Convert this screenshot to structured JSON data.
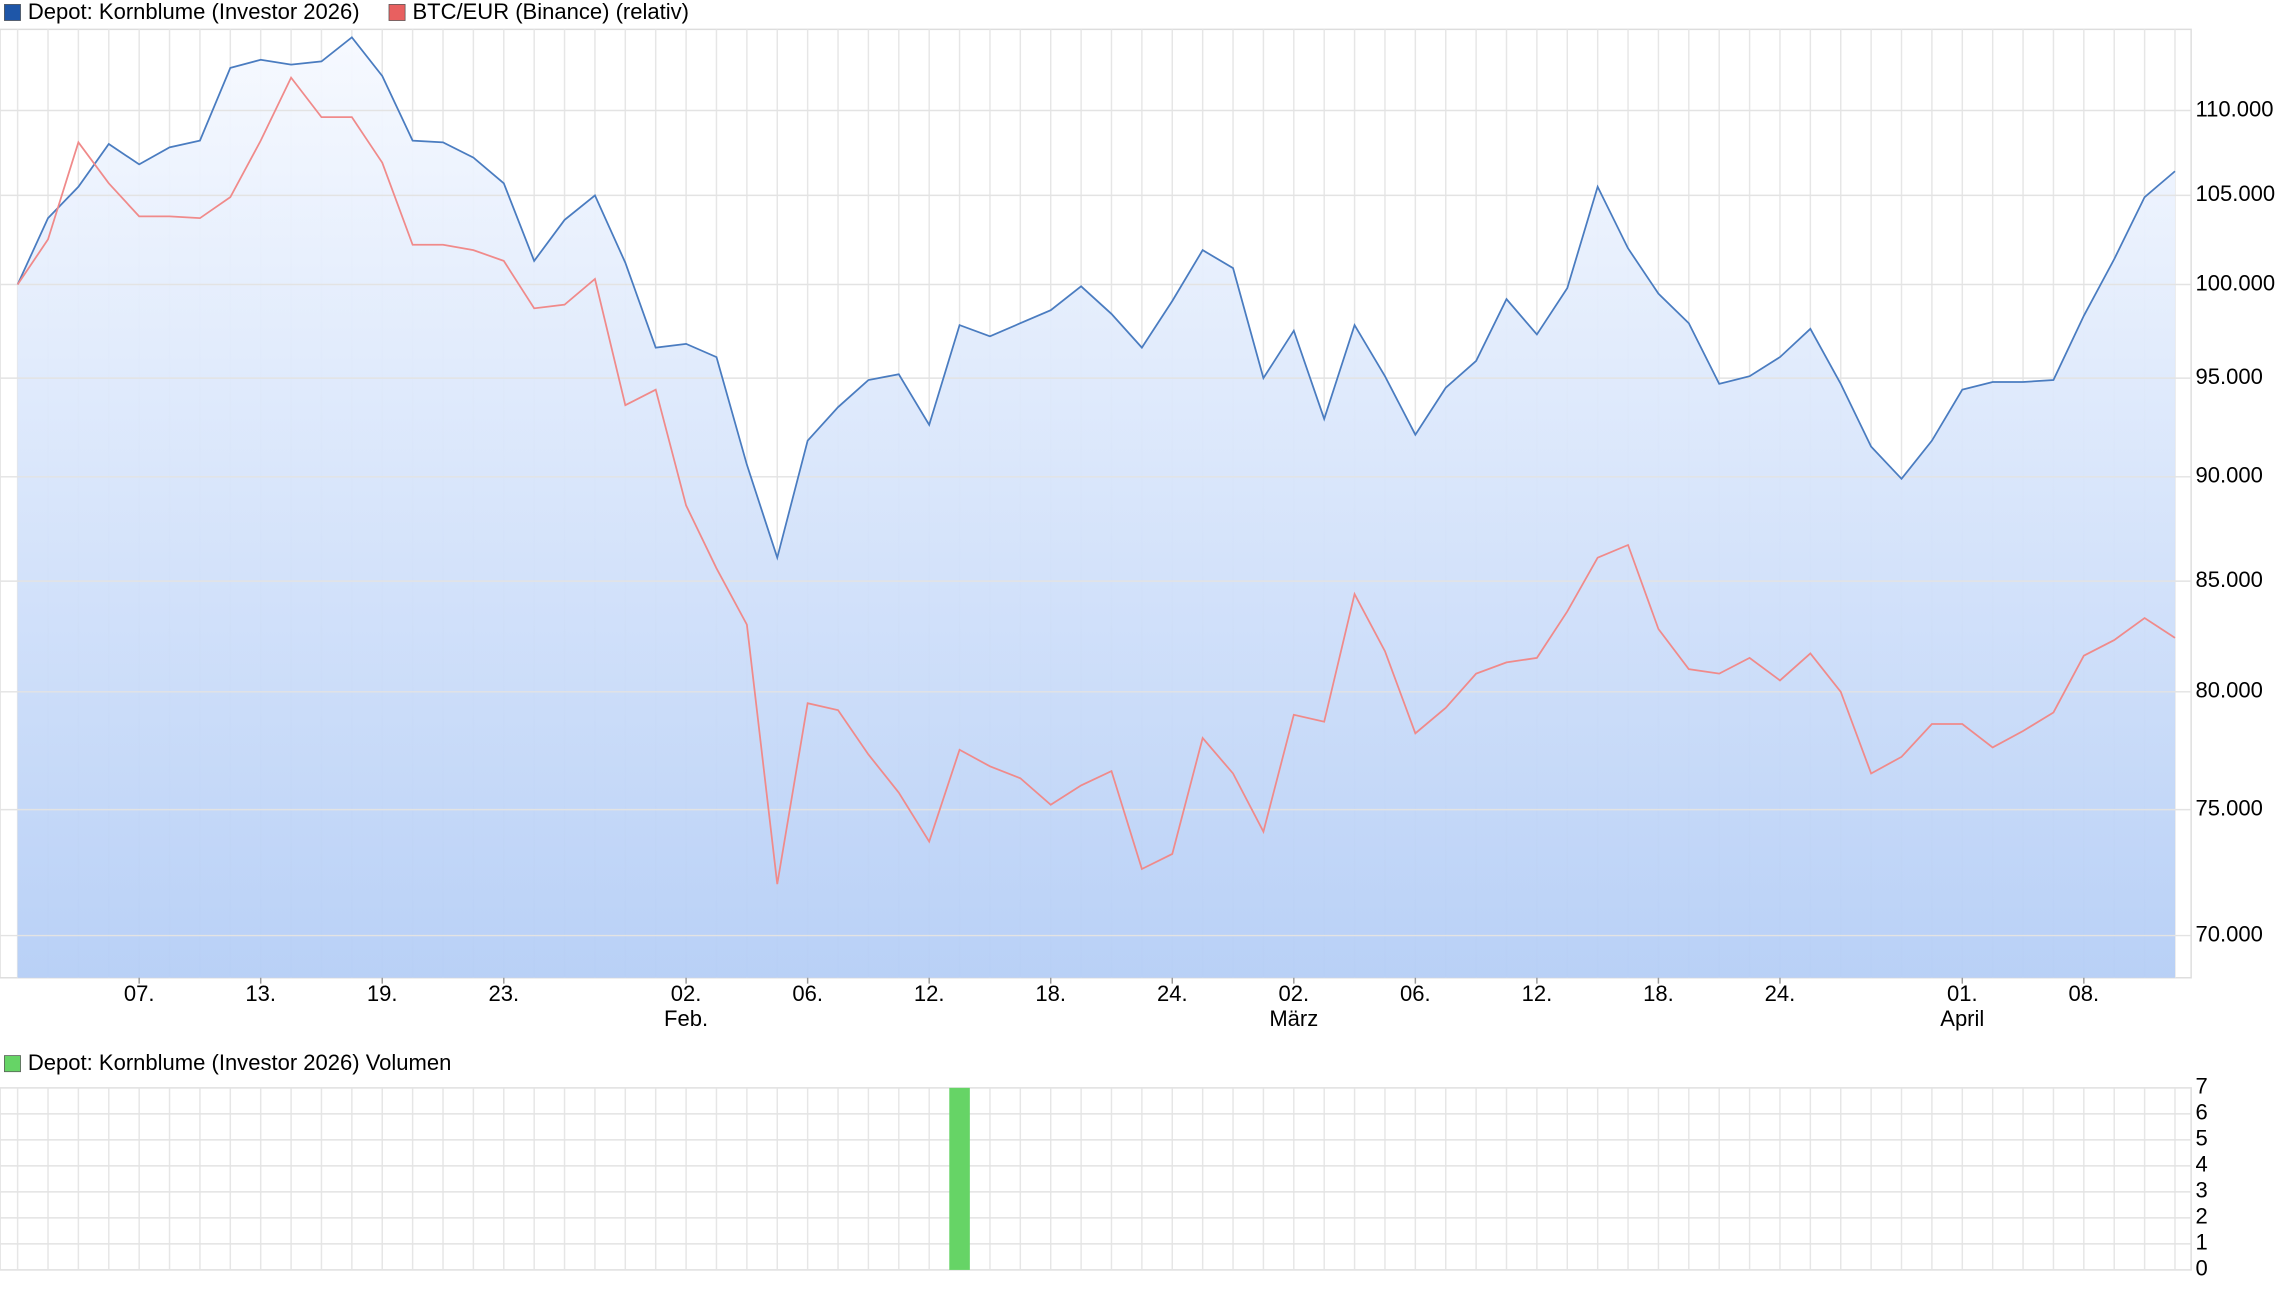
{
  "chart_data": [
    {
      "type": "line",
      "log_scale": true,
      "grid": true,
      "categories": [
        null,
        null,
        null,
        null,
        "07.",
        null,
        null,
        null,
        "13.",
        null,
        null,
        null,
        "19.",
        null,
        null,
        null,
        "23.",
        null,
        null,
        null,
        null,
        null,
        "02.",
        null,
        null,
        null,
        "06.",
        null,
        null,
        null,
        "12.",
        null,
        null,
        null,
        "18.",
        null,
        null,
        null,
        "24.",
        null,
        null,
        null,
        "02.",
        null,
        null,
        null,
        "06.",
        null,
        null,
        null,
        "12.",
        null,
        null,
        null,
        "18.",
        null,
        null,
        null,
        "24.",
        null,
        null,
        null,
        null,
        null,
        "01.",
        null,
        null,
        null,
        "08.",
        null,
        null,
        null
      ],
      "category_months": [
        null,
        null,
        null,
        null,
        null,
        null,
        null,
        null,
        null,
        null,
        null,
        null,
        null,
        null,
        null,
        null,
        null,
        null,
        null,
        null,
        null,
        null,
        "Feb.",
        null,
        null,
        null,
        null,
        null,
        null,
        null,
        null,
        null,
        null,
        null,
        null,
        null,
        null,
        null,
        null,
        null,
        null,
        null,
        "März",
        null,
        null,
        null,
        null,
        null,
        null,
        null,
        null,
        null,
        null,
        null,
        null,
        null,
        null,
        null,
        null,
        null,
        null,
        null,
        null,
        null,
        "April",
        null,
        null,
        null,
        null,
        null,
        null,
        null
      ],
      "series": [
        {
          "name": "Depot: Kornblume (Investor 2026)",
          "color": "#4a7cc0",
          "legend_color": "#1e56a8",
          "fill": true,
          "values": [
            100,
            103.7,
            105.5,
            108,
            106.8,
            107.8,
            108.2,
            112.6,
            113.1,
            112.8,
            113,
            114.5,
            112.1,
            108.2,
            108.1,
            107.2,
            105.7,
            101.3,
            103.6,
            105,
            101.2,
            96.6,
            96.8,
            96.1,
            90.6,
            86.1,
            91.8,
            93.5,
            94.9,
            95.2,
            92.6,
            97.8,
            97.2,
            97.9,
            98.6,
            99.9,
            98.4,
            96.6,
            99.1,
            101.9,
            100.9,
            95,
            97.5,
            92.9,
            97.8,
            95.1,
            92.1,
            94.5,
            95.9,
            99.2,
            97.3,
            99.8,
            105.5,
            102,
            99.5,
            97.9,
            94.7,
            95.1,
            96.1,
            97.6,
            94.7,
            91.5,
            89.9,
            91.8,
            94.4,
            94.8,
            94.8,
            94.9,
            98.3,
            101.4,
            104.9,
            106.4
          ]
        },
        {
          "name": "BTC/EUR (Binance) (relativ)",
          "color": "#f08a8a",
          "legend_color": "#e86060",
          "fill": false,
          "values": [
            100,
            102.5,
            108.1,
            105.7,
            103.8,
            103.8,
            103.7,
            104.9,
            108.2,
            112,
            109.6,
            109.6,
            106.9,
            102.2,
            102.2,
            101.9,
            101.3,
            98.7,
            98.9,
            100.3,
            93.6,
            94.4,
            88.6,
            85.6,
            83,
            72,
            79.5,
            79.2,
            77.3,
            75.7,
            73.7,
            77.5,
            76.8,
            76.3,
            75.2,
            76,
            76.6,
            72.6,
            73.2,
            78,
            76.5,
            74.1,
            79,
            78.7,
            84.4,
            81.8,
            78.2,
            79.3,
            80.8,
            81.3,
            81.5,
            83.6,
            86.1,
            86.7,
            82.8,
            81,
            80.8,
            81.5,
            80.5,
            81.7,
            80,
            76.5,
            77.2,
            78.6,
            78.6,
            77.6,
            78.3,
            79.1,
            81.6,
            82.3,
            83.3,
            82.4
          ]
        }
      ],
      "ylim": [
        68.4,
        115
      ],
      "yticks": [
        {
          "value": 70,
          "label": "70.000"
        },
        {
          "value": 75,
          "label": "75.000"
        },
        {
          "value": 80,
          "label": "80.000"
        },
        {
          "value": 85,
          "label": "85.000"
        },
        {
          "value": 90,
          "label": "90.000"
        },
        {
          "value": 95,
          "label": "95.000"
        },
        {
          "value": 100,
          "label": "100.000"
        },
        {
          "value": 105,
          "label": "105.000"
        },
        {
          "value": 110,
          "label": "110.000"
        }
      ]
    },
    {
      "type": "bar",
      "grid": true,
      "series": [
        {
          "name": "Depot: Kornblume (Investor 2026) Volumen",
          "color": "#66d466",
          "values": [
            0,
            0,
            0,
            0,
            0,
            0,
            0,
            0,
            0,
            0,
            0,
            0,
            0,
            0,
            0,
            0,
            0,
            0,
            0,
            0,
            0,
            0,
            0,
            0,
            0,
            0,
            0,
            0,
            0,
            0,
            0,
            7,
            0,
            0,
            0,
            0,
            0,
            0,
            0,
            0,
            0,
            0,
            0,
            0,
            0,
            0,
            0,
            0,
            0,
            0,
            0,
            0,
            0,
            0,
            0,
            0,
            0,
            0,
            0,
            0,
            0,
            0,
            0,
            0,
            0,
            0,
            0,
            0,
            0,
            0,
            0,
            0
          ]
        }
      ],
      "ylim": [
        0,
        7
      ],
      "yticks": [
        0,
        1,
        2,
        3,
        4,
        5,
        6,
        7
      ]
    }
  ]
}
